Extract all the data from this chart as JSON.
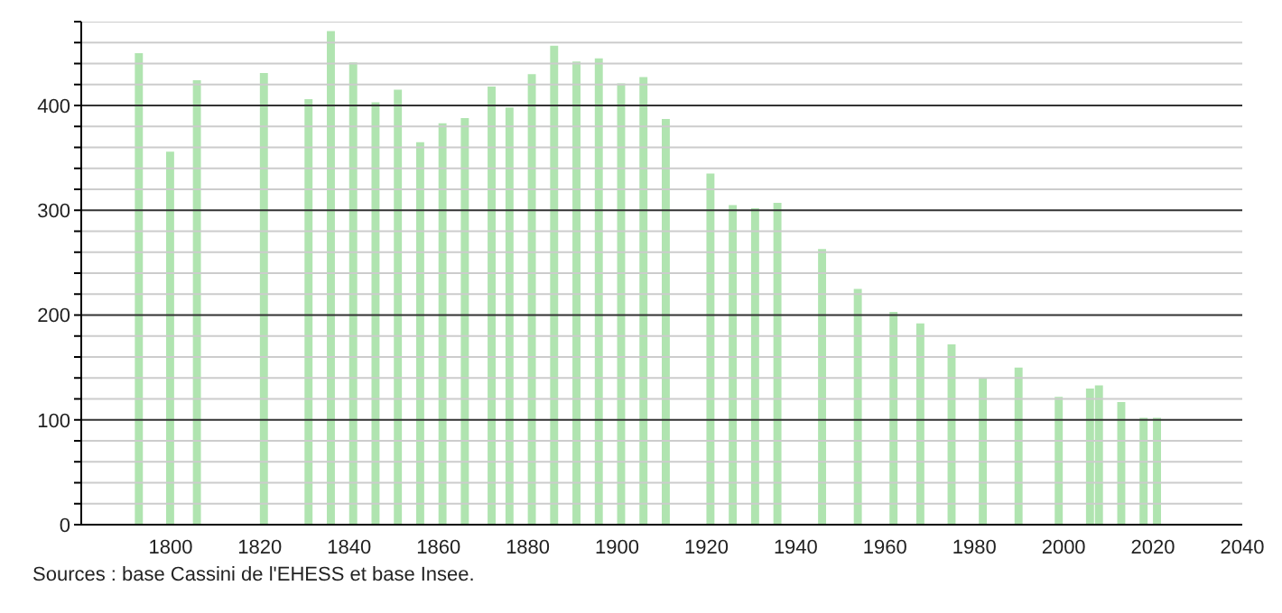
{
  "chart_data": {
    "type": "bar",
    "x": [
      1793,
      1800,
      1806,
      1821,
      1831,
      1836,
      1841,
      1846,
      1851,
      1856,
      1861,
      1866,
      1872,
      1876,
      1881,
      1886,
      1891,
      1896,
      1901,
      1906,
      1911,
      1921,
      1926,
      1931,
      1936,
      1946,
      1954,
      1962,
      1968,
      1975,
      1982,
      1990,
      1999,
      2006,
      2008,
      2013,
      2018,
      2021
    ],
    "values": [
      450,
      356,
      424,
      431,
      406,
      471,
      441,
      403,
      415,
      365,
      383,
      388,
      418,
      398,
      430,
      457,
      442,
      445,
      421,
      427,
      387,
      335,
      305,
      302,
      307,
      263,
      225,
      203,
      192,
      172,
      140,
      150,
      122,
      130,
      133,
      117,
      102,
      102
    ],
    "color": "#b0e4b0",
    "xlim": [
      1780,
      2040
    ],
    "xticks": [
      1800,
      1820,
      1840,
      1860,
      1880,
      1900,
      1920,
      1940,
      1960,
      1980,
      2000,
      2020,
      2040
    ],
    "ylim": [
      0,
      480
    ],
    "yticks": [
      0,
      {
        "value": 20,
        "label": null
      },
      {
        "value": 40,
        "label": null
      },
      {
        "value": 60,
        "label": null
      },
      {
        "value": 80,
        "label": null
      },
      100,
      {
        "value": 120,
        "label": null
      },
      {
        "value": 140,
        "label": null
      },
      {
        "value": 160,
        "label": null
      },
      {
        "value": 180,
        "label": null
      },
      200,
      {
        "value": 220,
        "label": null
      },
      {
        "value": 240,
        "label": null
      },
      {
        "value": 260,
        "label": null
      },
      {
        "value": 280,
        "label": null
      },
      300,
      {
        "value": 320,
        "label": null
      },
      {
        "value": 340,
        "label": null
      },
      {
        "value": 360,
        "label": null
      },
      {
        "value": 380,
        "label": null
      },
      400,
      {
        "value": 420,
        "label": null
      },
      {
        "value": 440,
        "label": null
      },
      {
        "value": 460,
        "label": null
      },
      {
        "value": 480,
        "label": null
      }
    ],
    "grid": "y",
    "annotations": [
      "Sources : base Cassini de l'EHESS et base Insee."
    ]
  }
}
